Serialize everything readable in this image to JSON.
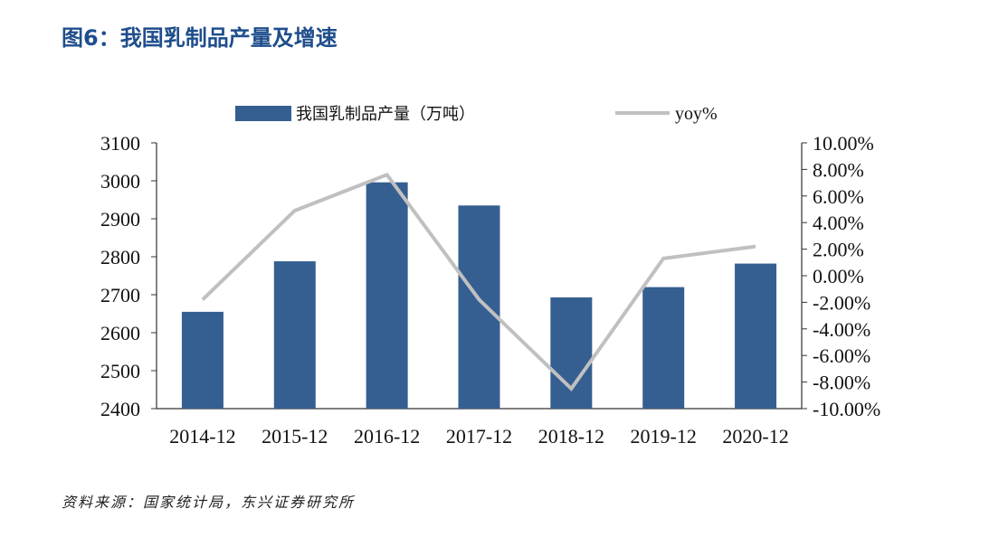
{
  "figure_title": "图6：我国乳制品产量及增速",
  "source_note": "资料来源：国家统计局，东兴证券研究所",
  "colors": {
    "bar": "#355f91",
    "line": "#c0c0c0",
    "title": "#1f4e8c"
  },
  "chart_data": {
    "type": "bar",
    "categories": [
      "2014-12",
      "2015-12",
      "2016-12",
      "2017-12",
      "2018-12",
      "2019-12",
      "2020-12"
    ],
    "series": [
      {
        "name": "我国乳制品产量（万吨）",
        "type": "bar",
        "axis": "left",
        "values": [
          2655,
          2788,
          2996,
          2935,
          2693,
          2720,
          2782
        ]
      },
      {
        "name": "yoy%",
        "type": "line",
        "axis": "right",
        "values": [
          -1.8,
          4.9,
          7.6,
          -1.8,
          -8.5,
          1.3,
          2.2
        ]
      }
    ],
    "y_left": {
      "range": [
        2400,
        3100
      ],
      "ticks": [
        "3100",
        "3000",
        "2900",
        "2800",
        "2700",
        "2600",
        "2500",
        "2400"
      ]
    },
    "y_right": {
      "range": [
        -10,
        10
      ],
      "ticks": [
        "10.00%",
        "8.00%",
        "6.00%",
        "4.00%",
        "2.00%",
        "0.00%",
        "-2.00%",
        "-4.00%",
        "-6.00%",
        "-8.00%",
        "-10.00%"
      ]
    },
    "legend_position": "top-center",
    "grid": false
  }
}
